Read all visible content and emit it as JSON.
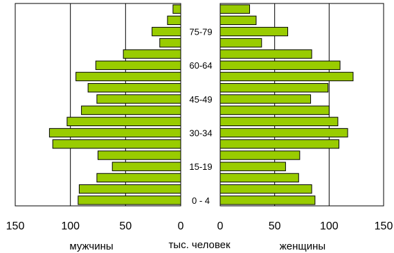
{
  "chart_data": {
    "type": "bar",
    "subtype": "population-pyramid",
    "xlabel": "тыс. человек",
    "age_labels": [
      "75-79",
      "60-64",
      "45-49",
      "30-34",
      "15-19",
      "0 - 4"
    ],
    "left": {
      "name": "мужчины",
      "xlim": [
        0,
        150
      ],
      "ticks": [
        "150",
        "100",
        "50",
        "0"
      ],
      "values": [
        7,
        12,
        26,
        19,
        52,
        77,
        95,
        84,
        76,
        90,
        103,
        119,
        116,
        75,
        62,
        76,
        92,
        93
      ]
    },
    "right": {
      "name": "женщины",
      "xlim": [
        0,
        150
      ],
      "ticks": [
        "0",
        "50",
        "100",
        "150"
      ],
      "values": [
        27,
        33,
        62,
        38,
        84,
        110,
        122,
        99,
        83,
        100,
        108,
        117,
        109,
        73,
        60,
        72,
        84,
        87
      ]
    },
    "bar_color": "#99cc00",
    "bar_stroke": "#000000",
    "grid": true
  }
}
